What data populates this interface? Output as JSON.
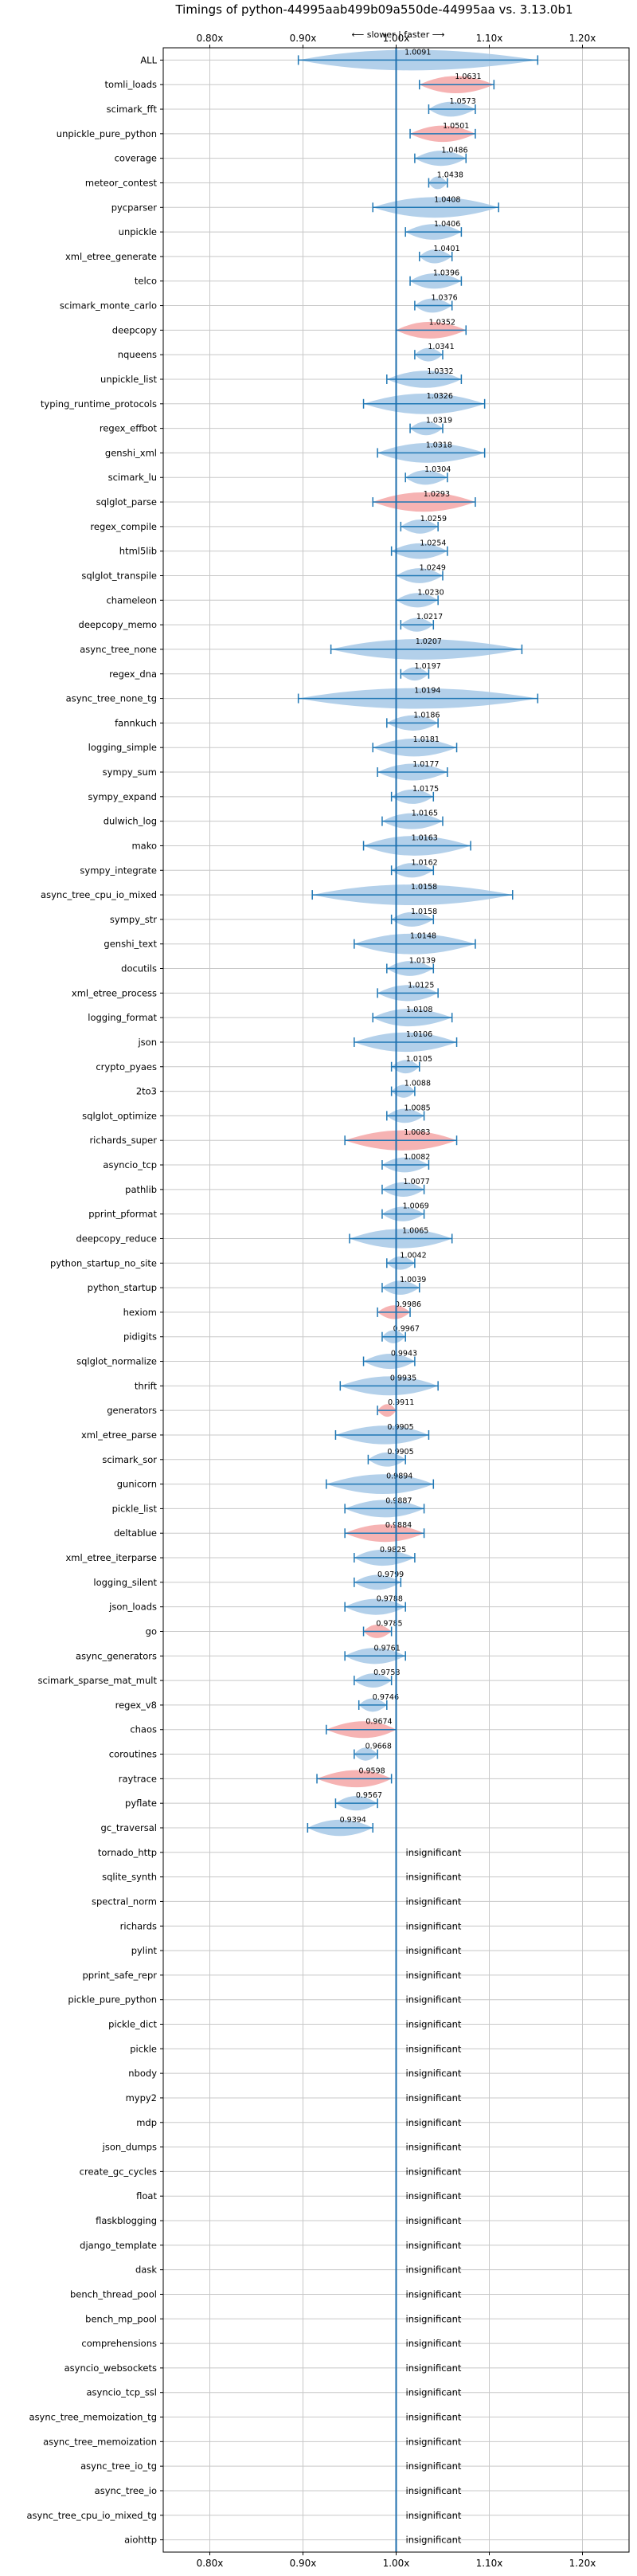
{
  "chart_data": {
    "type": "violin",
    "title": "Timings of python-44995aab499b09a550de-44995aa vs. 3.13.0b1",
    "direction_label": "⟵ slower | faster ⟶",
    "xlim": [
      0.75,
      1.25
    ],
    "xticks": [
      0.8,
      0.9,
      1.0,
      1.1,
      1.2
    ],
    "xtick_labels": [
      "0.80x",
      "0.90x",
      "1.00x",
      "1.10x",
      "1.20x"
    ],
    "grid": true,
    "reference_line": 1.0,
    "insignificant_label": "insignificant",
    "colors": {
      "faster": "#a6c8e6",
      "slower": "#f4a6a6",
      "errorbar": "#1f77b4",
      "reference": "#1f6fae",
      "grid": "#c8c8c8",
      "axis": "#000000"
    },
    "benchmarks": [
      {
        "name": "ALL",
        "value": 1.0091,
        "label": "1.0091",
        "low": 0.895,
        "high": 1.152,
        "class": "faster"
      },
      {
        "name": "tomli_loads",
        "value": 1.0631,
        "label": "1.0631",
        "low": 1.025,
        "high": 1.105,
        "class": "slower"
      },
      {
        "name": "scimark_fft",
        "value": 1.0573,
        "label": "1.0573",
        "low": 1.035,
        "high": 1.085,
        "class": "faster"
      },
      {
        "name": "unpickle_pure_python",
        "value": 1.0501,
        "label": "1.0501",
        "low": 1.015,
        "high": 1.085,
        "class": "slower"
      },
      {
        "name": "coverage",
        "value": 1.0486,
        "label": "1.0486",
        "low": 1.02,
        "high": 1.075,
        "class": "faster"
      },
      {
        "name": "meteor_contest",
        "value": 1.0438,
        "label": "1.0438",
        "low": 1.035,
        "high": 1.055,
        "class": "faster"
      },
      {
        "name": "pycparser",
        "value": 1.0408,
        "label": "1.0408",
        "low": 0.975,
        "high": 1.11,
        "class": "faster"
      },
      {
        "name": "unpickle",
        "value": 1.0406,
        "label": "1.0406",
        "low": 1.01,
        "high": 1.07,
        "class": "faster"
      },
      {
        "name": "xml_etree_generate",
        "value": 1.0401,
        "label": "1.0401",
        "low": 1.025,
        "high": 1.06,
        "class": "faster"
      },
      {
        "name": "telco",
        "value": 1.0396,
        "label": "1.0396",
        "low": 1.015,
        "high": 1.07,
        "class": "faster"
      },
      {
        "name": "scimark_monte_carlo",
        "value": 1.0376,
        "label": "1.0376",
        "low": 1.02,
        "high": 1.06,
        "class": "faster"
      },
      {
        "name": "deepcopy",
        "value": 1.0352,
        "label": "1.0352",
        "low": 1.0,
        "high": 1.075,
        "class": "slower"
      },
      {
        "name": "nqueens",
        "value": 1.0341,
        "label": "1.0341",
        "low": 1.02,
        "high": 1.05,
        "class": "faster"
      },
      {
        "name": "unpickle_list",
        "value": 1.0332,
        "label": "1.0332",
        "low": 0.99,
        "high": 1.07,
        "class": "faster"
      },
      {
        "name": "typing_runtime_protocols",
        "value": 1.0326,
        "label": "1.0326",
        "low": 0.965,
        "high": 1.095,
        "class": "faster"
      },
      {
        "name": "regex_effbot",
        "value": 1.0319,
        "label": "1.0319",
        "low": 1.015,
        "high": 1.05,
        "class": "faster"
      },
      {
        "name": "genshi_xml",
        "value": 1.0318,
        "label": "1.0318",
        "low": 0.98,
        "high": 1.095,
        "class": "faster"
      },
      {
        "name": "scimark_lu",
        "value": 1.0304,
        "label": "1.0304",
        "low": 1.01,
        "high": 1.055,
        "class": "faster"
      },
      {
        "name": "sqlglot_parse",
        "value": 1.0293,
        "label": "1.0293",
        "low": 0.975,
        "high": 1.085,
        "class": "slower"
      },
      {
        "name": "regex_compile",
        "value": 1.0259,
        "label": "1.0259",
        "low": 1.005,
        "high": 1.045,
        "class": "faster"
      },
      {
        "name": "html5lib",
        "value": 1.0254,
        "label": "1.0254",
        "low": 0.995,
        "high": 1.055,
        "class": "faster"
      },
      {
        "name": "sqlglot_transpile",
        "value": 1.0249,
        "label": "1.0249",
        "low": 1.0,
        "high": 1.05,
        "class": "faster"
      },
      {
        "name": "chameleon",
        "value": 1.023,
        "label": "1.0230",
        "low": 1.0,
        "high": 1.045,
        "class": "faster"
      },
      {
        "name": "deepcopy_memo",
        "value": 1.0217,
        "label": "1.0217",
        "low": 1.005,
        "high": 1.04,
        "class": "faster"
      },
      {
        "name": "async_tree_none",
        "value": 1.0207,
        "label": "1.0207",
        "low": 0.93,
        "high": 1.135,
        "class": "faster"
      },
      {
        "name": "regex_dna",
        "value": 1.0197,
        "label": "1.0197",
        "low": 1.005,
        "high": 1.035,
        "class": "faster"
      },
      {
        "name": "async_tree_none_tg",
        "value": 1.0194,
        "label": "1.0194",
        "low": 0.895,
        "high": 1.152,
        "class": "faster"
      },
      {
        "name": "fannkuch",
        "value": 1.0186,
        "label": "1.0186",
        "low": 0.99,
        "high": 1.045,
        "class": "faster"
      },
      {
        "name": "logging_simple",
        "value": 1.0181,
        "label": "1.0181",
        "low": 0.975,
        "high": 1.065,
        "class": "faster"
      },
      {
        "name": "sympy_sum",
        "value": 1.0177,
        "label": "1.0177",
        "low": 0.98,
        "high": 1.055,
        "class": "faster"
      },
      {
        "name": "sympy_expand",
        "value": 1.0175,
        "label": "1.0175",
        "low": 0.995,
        "high": 1.04,
        "class": "faster"
      },
      {
        "name": "dulwich_log",
        "value": 1.0165,
        "label": "1.0165",
        "low": 0.985,
        "high": 1.05,
        "class": "faster"
      },
      {
        "name": "mako",
        "value": 1.0163,
        "label": "1.0163",
        "low": 0.965,
        "high": 1.08,
        "class": "faster"
      },
      {
        "name": "sympy_integrate",
        "value": 1.0162,
        "label": "1.0162",
        "low": 0.995,
        "high": 1.04,
        "class": "faster"
      },
      {
        "name": "async_tree_cpu_io_mixed",
        "value": 1.0158,
        "label": "1.0158",
        "low": 0.91,
        "high": 1.125,
        "class": "faster"
      },
      {
        "name": "sympy_str",
        "value": 1.0158,
        "label": "1.0158",
        "low": 0.995,
        "high": 1.04,
        "class": "faster"
      },
      {
        "name": "genshi_text",
        "value": 1.0148,
        "label": "1.0148",
        "low": 0.955,
        "high": 1.085,
        "class": "faster"
      },
      {
        "name": "docutils",
        "value": 1.0139,
        "label": "1.0139",
        "low": 0.99,
        "high": 1.04,
        "class": "faster"
      },
      {
        "name": "xml_etree_process",
        "value": 1.0125,
        "label": "1.0125",
        "low": 0.98,
        "high": 1.045,
        "class": "faster"
      },
      {
        "name": "logging_format",
        "value": 1.0108,
        "label": "1.0108",
        "low": 0.975,
        "high": 1.06,
        "class": "faster"
      },
      {
        "name": "json",
        "value": 1.0106,
        "label": "1.0106",
        "low": 0.955,
        "high": 1.065,
        "class": "faster"
      },
      {
        "name": "crypto_pyaes",
        "value": 1.0105,
        "label": "1.0105",
        "low": 0.995,
        "high": 1.025,
        "class": "faster"
      },
      {
        "name": "2to3",
        "value": 1.0088,
        "label": "1.0088",
        "low": 0.995,
        "high": 1.02,
        "class": "faster"
      },
      {
        "name": "sqlglot_optimize",
        "value": 1.0085,
        "label": "1.0085",
        "low": 0.99,
        "high": 1.03,
        "class": "faster"
      },
      {
        "name": "richards_super",
        "value": 1.0083,
        "label": "1.0083",
        "low": 0.945,
        "high": 1.065,
        "class": "slower"
      },
      {
        "name": "asyncio_tcp",
        "value": 1.0082,
        "label": "1.0082",
        "low": 0.985,
        "high": 1.035,
        "class": "faster"
      },
      {
        "name": "pathlib",
        "value": 1.0077,
        "label": "1.0077",
        "low": 0.985,
        "high": 1.03,
        "class": "faster"
      },
      {
        "name": "pprint_pformat",
        "value": 1.0069,
        "label": "1.0069",
        "low": 0.985,
        "high": 1.03,
        "class": "faster"
      },
      {
        "name": "deepcopy_reduce",
        "value": 1.0065,
        "label": "1.0065",
        "low": 0.95,
        "high": 1.06,
        "class": "faster"
      },
      {
        "name": "python_startup_no_site",
        "value": 1.0042,
        "label": "1.0042",
        "low": 0.99,
        "high": 1.02,
        "class": "faster"
      },
      {
        "name": "python_startup",
        "value": 1.0039,
        "label": "1.0039",
        "low": 0.985,
        "high": 1.025,
        "class": "faster"
      },
      {
        "name": "hexiom",
        "value": 0.9986,
        "label": "0.9986",
        "low": 0.98,
        "high": 1.015,
        "class": "slower"
      },
      {
        "name": "pidigits",
        "value": 0.9967,
        "label": "0.9967",
        "low": 0.985,
        "high": 1.01,
        "class": "faster"
      },
      {
        "name": "sqlglot_normalize",
        "value": 0.9943,
        "label": "0.9943",
        "low": 0.965,
        "high": 1.02,
        "class": "faster"
      },
      {
        "name": "thrift",
        "value": 0.9935,
        "label": "0.9935",
        "low": 0.94,
        "high": 1.045,
        "class": "faster"
      },
      {
        "name": "generators",
        "value": 0.9911,
        "label": "0.9911",
        "low": 0.98,
        "high": 1.0,
        "class": "slower"
      },
      {
        "name": "xml_etree_parse",
        "value": 0.9905,
        "label": "0.9905",
        "low": 0.935,
        "high": 1.035,
        "class": "faster"
      },
      {
        "name": "scimark_sor",
        "value": 0.9905,
        "label": "0.9905",
        "low": 0.97,
        "high": 1.01,
        "class": "faster"
      },
      {
        "name": "gunicorn",
        "value": 0.9894,
        "label": "0.9894",
        "low": 0.925,
        "high": 1.04,
        "class": "faster"
      },
      {
        "name": "pickle_list",
        "value": 0.9887,
        "label": "0.9887",
        "low": 0.945,
        "high": 1.03,
        "class": "faster"
      },
      {
        "name": "deltablue",
        "value": 0.9884,
        "label": "0.9884",
        "low": 0.945,
        "high": 1.03,
        "class": "slower"
      },
      {
        "name": "xml_etree_iterparse",
        "value": 0.9825,
        "label": "0.9825",
        "low": 0.955,
        "high": 1.02,
        "class": "faster"
      },
      {
        "name": "logging_silent",
        "value": 0.9799,
        "label": "0.9799",
        "low": 0.955,
        "high": 1.005,
        "class": "faster"
      },
      {
        "name": "json_loads",
        "value": 0.9788,
        "label": "0.9788",
        "low": 0.945,
        "high": 1.01,
        "class": "faster"
      },
      {
        "name": "go",
        "value": 0.9785,
        "label": "0.9785",
        "low": 0.965,
        "high": 0.995,
        "class": "slower"
      },
      {
        "name": "async_generators",
        "value": 0.9761,
        "label": "0.9761",
        "low": 0.945,
        "high": 1.01,
        "class": "faster"
      },
      {
        "name": "scimark_sparse_mat_mult",
        "value": 0.9758,
        "label": "0.9758",
        "low": 0.955,
        "high": 0.995,
        "class": "faster"
      },
      {
        "name": "regex_v8",
        "value": 0.9746,
        "label": "0.9746",
        "low": 0.96,
        "high": 0.99,
        "class": "faster"
      },
      {
        "name": "chaos",
        "value": 0.9674,
        "label": "0.9674",
        "low": 0.925,
        "high": 1.0,
        "class": "slower"
      },
      {
        "name": "coroutines",
        "value": 0.9668,
        "label": "0.9668",
        "low": 0.955,
        "high": 0.98,
        "class": "faster"
      },
      {
        "name": "raytrace",
        "value": 0.9598,
        "label": "0.9598",
        "low": 0.915,
        "high": 0.995,
        "class": "slower"
      },
      {
        "name": "pyflate",
        "value": 0.9567,
        "label": "0.9567",
        "low": 0.935,
        "high": 0.98,
        "class": "faster"
      },
      {
        "name": "gc_traversal",
        "value": 0.9394,
        "label": "0.9394",
        "low": 0.905,
        "high": 0.975,
        "class": "faster"
      },
      {
        "name": "tornado_http",
        "value": null,
        "label": "insignificant"
      },
      {
        "name": "sqlite_synth",
        "value": null,
        "label": "insignificant"
      },
      {
        "name": "spectral_norm",
        "value": null,
        "label": "insignificant"
      },
      {
        "name": "richards",
        "value": null,
        "label": "insignificant"
      },
      {
        "name": "pylint",
        "value": null,
        "label": "insignificant"
      },
      {
        "name": "pprint_safe_repr",
        "value": null,
        "label": "insignificant"
      },
      {
        "name": "pickle_pure_python",
        "value": null,
        "label": "insignificant"
      },
      {
        "name": "pickle_dict",
        "value": null,
        "label": "insignificant"
      },
      {
        "name": "pickle",
        "value": null,
        "label": "insignificant"
      },
      {
        "name": "nbody",
        "value": null,
        "label": "insignificant"
      },
      {
        "name": "mypy2",
        "value": null,
        "label": "insignificant"
      },
      {
        "name": "mdp",
        "value": null,
        "label": "insignificant"
      },
      {
        "name": "json_dumps",
        "value": null,
        "label": "insignificant"
      },
      {
        "name": "create_gc_cycles",
        "value": null,
        "label": "insignificant"
      },
      {
        "name": "float",
        "value": null,
        "label": "insignificant"
      },
      {
        "name": "flaskblogging",
        "value": null,
        "label": "insignificant"
      },
      {
        "name": "django_template",
        "value": null,
        "label": "insignificant"
      },
      {
        "name": "dask",
        "value": null,
        "label": "insignificant"
      },
      {
        "name": "bench_thread_pool",
        "value": null,
        "label": "insignificant"
      },
      {
        "name": "bench_mp_pool",
        "value": null,
        "label": "insignificant"
      },
      {
        "name": "comprehensions",
        "value": null,
        "label": "insignificant"
      },
      {
        "name": "asyncio_websockets",
        "value": null,
        "label": "insignificant"
      },
      {
        "name": "asyncio_tcp_ssl",
        "value": null,
        "label": "insignificant"
      },
      {
        "name": "async_tree_memoization_tg",
        "value": null,
        "label": "insignificant"
      },
      {
        "name": "async_tree_memoization",
        "value": null,
        "label": "insignificant"
      },
      {
        "name": "async_tree_io_tg",
        "value": null,
        "label": "insignificant"
      },
      {
        "name": "async_tree_io",
        "value": null,
        "label": "insignificant"
      },
      {
        "name": "async_tree_cpu_io_mixed_tg",
        "value": null,
        "label": "insignificant"
      },
      {
        "name": "aiohttp",
        "value": null,
        "label": "insignificant"
      }
    ]
  }
}
